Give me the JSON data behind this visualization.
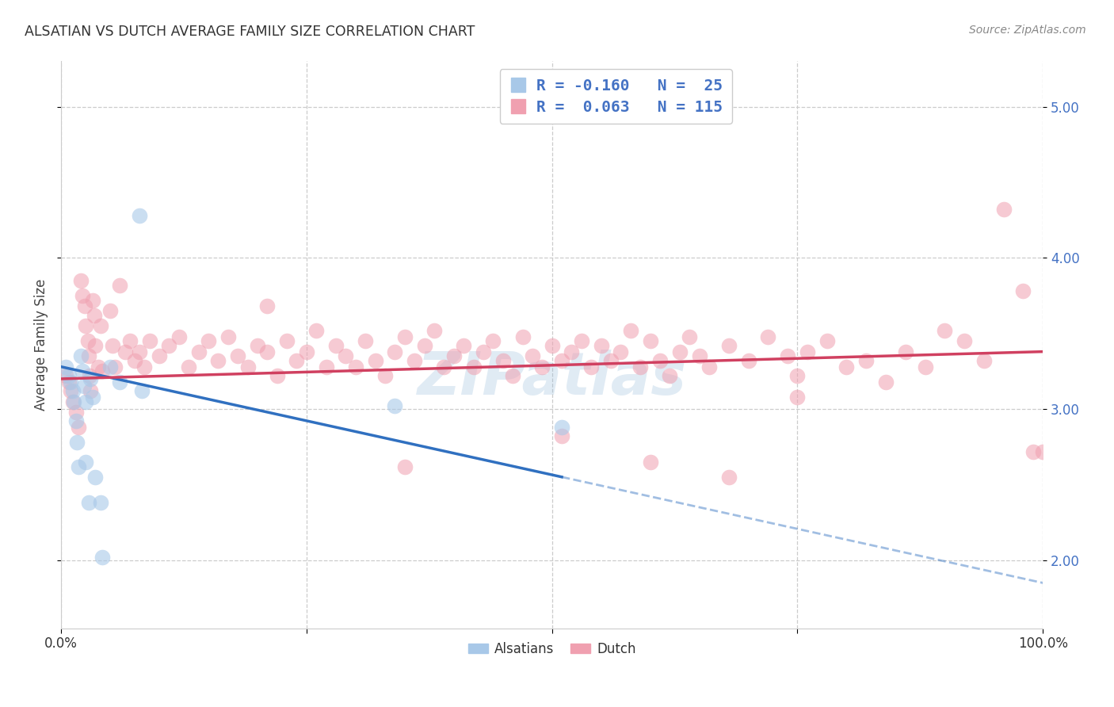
{
  "title": "ALSATIAN VS DUTCH AVERAGE FAMILY SIZE CORRELATION CHART",
  "source": "Source: ZipAtlas.com",
  "ylabel": "Average Family Size",
  "yticks": [
    2.0,
    3.0,
    4.0,
    5.0
  ],
  "xmin": 0.0,
  "xmax": 1.0,
  "ymin": 1.55,
  "ymax": 5.3,
  "alsatian_fill_color": "#a8c8e8",
  "dutch_fill_color": "#f0a0b0",
  "alsatian_line_color": "#3070c0",
  "dutch_line_color": "#d04060",
  "alsatian_line_solid_end": 0.51,
  "alsatian_line_x0": 0.0,
  "alsatian_line_y0": 3.28,
  "alsatian_line_x1": 1.0,
  "alsatian_line_y1": 1.85,
  "dutch_line_x0": 0.0,
  "dutch_line_y0": 3.2,
  "dutch_line_x1": 1.0,
  "dutch_line_y1": 3.38,
  "alsatian_x": [
    0.005,
    0.008,
    0.01,
    0.012,
    0.013,
    0.015,
    0.016,
    0.018,
    0.02,
    0.022,
    0.023,
    0.025,
    0.025,
    0.028,
    0.03,
    0.032,
    0.035,
    0.04,
    0.042,
    0.05,
    0.06,
    0.08,
    0.082,
    0.34,
    0.51
  ],
  "alsatian_y": [
    3.28,
    3.22,
    3.18,
    3.12,
    3.05,
    2.92,
    2.78,
    2.62,
    3.35,
    3.25,
    3.15,
    3.05,
    2.65,
    2.38,
    3.2,
    3.08,
    2.55,
    2.38,
    2.02,
    3.28,
    3.18,
    4.28,
    3.12,
    3.02,
    2.88
  ],
  "dutch_x": [
    0.005,
    0.008,
    0.01,
    0.012,
    0.015,
    0.018,
    0.02,
    0.022,
    0.024,
    0.025,
    0.027,
    0.028,
    0.029,
    0.03,
    0.032,
    0.034,
    0.035,
    0.038,
    0.04,
    0.042,
    0.05,
    0.052,
    0.055,
    0.06,
    0.065,
    0.07,
    0.075,
    0.08,
    0.085,
    0.09,
    0.1,
    0.11,
    0.12,
    0.13,
    0.14,
    0.15,
    0.16,
    0.17,
    0.18,
    0.19,
    0.2,
    0.21,
    0.22,
    0.23,
    0.24,
    0.25,
    0.26,
    0.27,
    0.28,
    0.29,
    0.3,
    0.31,
    0.32,
    0.33,
    0.34,
    0.35,
    0.36,
    0.37,
    0.38,
    0.39,
    0.4,
    0.41,
    0.42,
    0.43,
    0.44,
    0.45,
    0.46,
    0.47,
    0.48,
    0.49,
    0.5,
    0.51,
    0.52,
    0.53,
    0.54,
    0.55,
    0.56,
    0.57,
    0.58,
    0.59,
    0.6,
    0.61,
    0.62,
    0.63,
    0.64,
    0.65,
    0.66,
    0.68,
    0.7,
    0.72,
    0.74,
    0.75,
    0.76,
    0.78,
    0.8,
    0.82,
    0.84,
    0.86,
    0.88,
    0.9,
    0.92,
    0.94,
    0.96,
    0.98,
    1.0,
    0.21,
    0.35,
    0.51,
    0.6,
    0.68,
    0.75,
    0.99
  ],
  "dutch_y": [
    3.22,
    3.18,
    3.12,
    3.05,
    2.98,
    2.88,
    3.85,
    3.75,
    3.68,
    3.55,
    3.45,
    3.35,
    3.22,
    3.12,
    3.72,
    3.62,
    3.42,
    3.28,
    3.55,
    3.25,
    3.65,
    3.42,
    3.28,
    3.82,
    3.38,
    3.45,
    3.32,
    3.38,
    3.28,
    3.45,
    3.35,
    3.42,
    3.48,
    3.28,
    3.38,
    3.45,
    3.32,
    3.48,
    3.35,
    3.28,
    3.42,
    3.38,
    3.22,
    3.45,
    3.32,
    3.38,
    3.52,
    3.28,
    3.42,
    3.35,
    3.28,
    3.45,
    3.32,
    3.22,
    3.38,
    3.48,
    3.32,
    3.42,
    3.52,
    3.28,
    3.35,
    3.42,
    3.28,
    3.38,
    3.45,
    3.32,
    3.22,
    3.48,
    3.35,
    3.28,
    3.42,
    3.32,
    3.38,
    3.45,
    3.28,
    3.42,
    3.32,
    3.38,
    3.52,
    3.28,
    3.45,
    3.32,
    3.22,
    3.38,
    3.48,
    3.35,
    3.28,
    3.42,
    3.32,
    3.48,
    3.35,
    3.22,
    3.38,
    3.45,
    3.28,
    3.32,
    3.18,
    3.38,
    3.28,
    3.52,
    3.45,
    3.32,
    4.32,
    3.78,
    2.72,
    3.68,
    2.62,
    2.82,
    2.65,
    2.55,
    3.08,
    2.72
  ],
  "watermark": "ZIPatlas",
  "background_color": "#ffffff",
  "grid_color": "#cccccc"
}
